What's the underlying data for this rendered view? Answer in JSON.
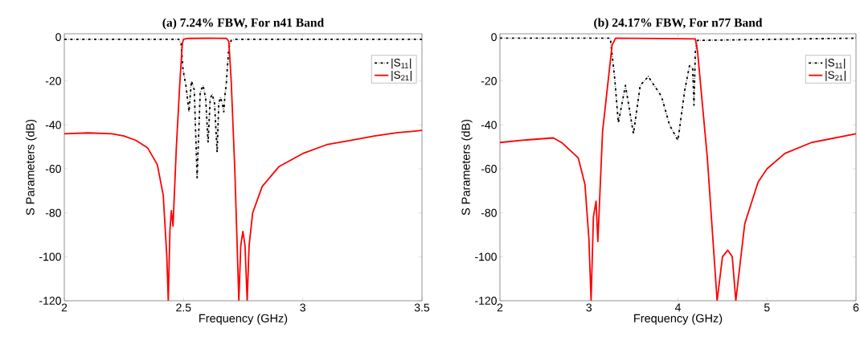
{
  "chart_data": [
    {
      "type": "line",
      "title": "(a) 7.24% FBW, For n41 Band",
      "xlabel": "Frequency (GHz)",
      "ylabel": "S Parameters (dB)",
      "xlim": [
        2,
        3.5
      ],
      "ylim": [
        -120,
        1.5
      ],
      "xticks": [
        2,
        2.5,
        3,
        3.5
      ],
      "yticks": [
        -120,
        -100,
        -80,
        -60,
        -40,
        -20,
        0
      ],
      "grid": false,
      "legend": "top right",
      "marker": "none",
      "series": [
        {
          "name": "|S$_{11}$|",
          "color": "#000000",
          "line_style": "dashdot",
          "x": [
            2,
            2.48,
            2.49,
            2.498,
            2.51,
            2.523,
            2.533,
            2.545,
            2.557,
            2.57,
            2.582,
            2.593,
            2.603,
            2.612,
            2.62,
            2.63,
            2.641,
            2.648,
            2.655,
            2.662,
            2.669,
            2.674,
            2.679,
            2.685,
            2.69,
            2.7,
            2.72,
            3.5
          ],
          "values": [
            -1,
            -1,
            -3,
            -15,
            -22,
            -34,
            -20,
            -24,
            -64,
            -25,
            -22,
            -28,
            -48,
            -28,
            -26,
            -30,
            -52.5,
            -30,
            -27.5,
            -30,
            -34,
            -26,
            -22,
            -12,
            -5,
            -1.5,
            -1,
            -1
          ]
        },
        {
          "name": "|S$_{21}$|",
          "color": "#ff0000",
          "line_style": "solid",
          "x": [
            2,
            2.1,
            2.2,
            2.25,
            2.3,
            2.35,
            2.39,
            2.415,
            2.43,
            2.436,
            2.443,
            2.449,
            2.456,
            2.47,
            2.485,
            2.495,
            2.5,
            2.52,
            2.6,
            2.68,
            2.69,
            2.7,
            2.715,
            2.725,
            2.732,
            2.74,
            2.749,
            2.758,
            2.767,
            2.775,
            2.79,
            2.83,
            2.9,
            3.0,
            3.1,
            3.2,
            3.3,
            3.4,
            3.5
          ],
          "values": [
            -44,
            -43.6,
            -44,
            -45,
            -47,
            -50.5,
            -58,
            -72,
            -100,
            -120,
            -88,
            -79,
            -86,
            -50,
            -20,
            -3,
            -1,
            -0.6,
            -0.5,
            -0.6,
            -2,
            -20,
            -60,
            -95,
            -120,
            -95,
            -88.5,
            -95,
            -120,
            -95,
            -80,
            -68,
            -59,
            -53,
            -49,
            -47,
            -45,
            -43.5,
            -42.5
          ]
        }
      ]
    },
    {
      "type": "line",
      "title": "(b) 24.17% FBW, For n77 Band",
      "xlabel": "Frequency (GHz)",
      "ylabel": "S Parameters (dB)",
      "xlim": [
        2,
        6
      ],
      "ylim": [
        -120,
        1.5
      ],
      "xticks": [
        2,
        3,
        4,
        5,
        6
      ],
      "yticks": [
        -120,
        -100,
        -80,
        -60,
        -40,
        -20,
        0
      ],
      "grid": false,
      "legend": "top right",
      "marker": "none",
      "series": [
        {
          "name": "|S$_{11}$|",
          "color": "#000000",
          "line_style": "dashdot",
          "x": [
            2,
            3.24,
            3.29,
            3.33,
            3.41,
            3.5,
            3.576,
            3.667,
            3.815,
            3.905,
            4.0,
            4.075,
            4.13,
            4.165,
            4.18,
            4.195,
            4.22,
            6
          ],
          "values": [
            -0.5,
            -0.5,
            -19,
            -39,
            -22,
            -44,
            -22,
            -18,
            -27,
            -40,
            -47,
            -24.5,
            -13,
            -14,
            -31,
            -7,
            -1.5,
            -0.5
          ]
        },
        {
          "name": "|S$_{21}$|",
          "color": "#ff0000",
          "line_style": "solid",
          "x": [
            2,
            2.3,
            2.6,
            2.7,
            2.88,
            2.955,
            3.0,
            3.024,
            3.05,
            3.08,
            3.1,
            3.153,
            3.26,
            3.3,
            4.195,
            4.22,
            4.33,
            4.44,
            4.5,
            4.56,
            4.61,
            4.65,
            4.75,
            4.9,
            5.0,
            5.2,
            5.5,
            6.0
          ],
          "values": [
            -48,
            -46.8,
            -45.9,
            -48.2,
            -55,
            -67,
            -92,
            -120,
            -82,
            -74.7,
            -93,
            -43,
            -3.7,
            -0.5,
            -0.8,
            -6.5,
            -55,
            -120,
            -100,
            -97,
            -100,
            -120,
            -85,
            -66,
            -60,
            -53,
            -48,
            -44
          ]
        }
      ]
    }
  ]
}
